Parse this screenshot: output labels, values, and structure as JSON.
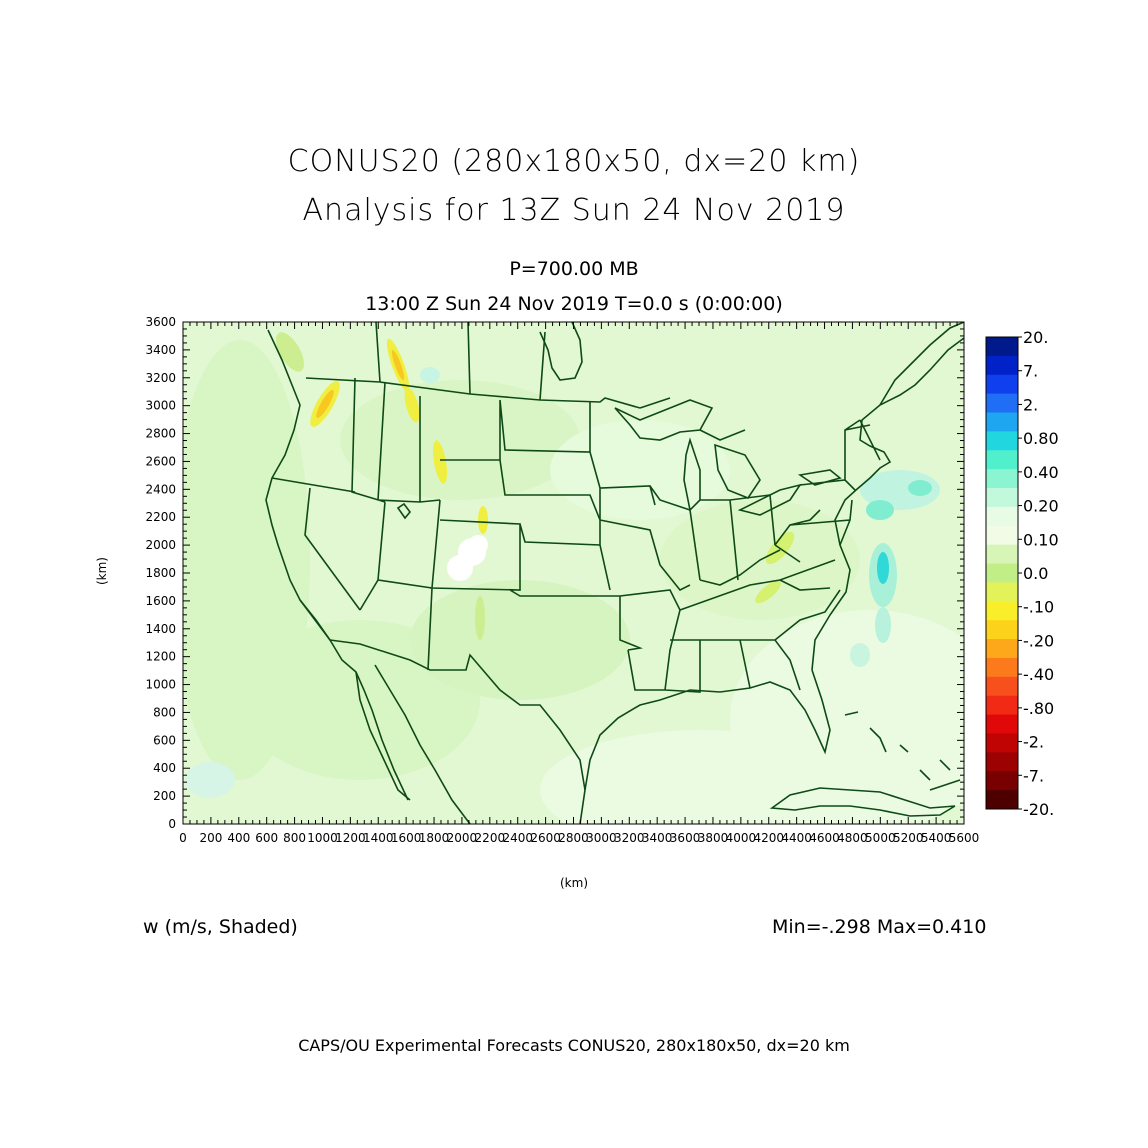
{
  "header": {
    "title_line1": "CONUS20 (280x180x50, dx=20 km)",
    "title_line2": "Analysis for 13Z Sun 24 Nov 2019",
    "level": "P=700.00 MB",
    "valid_time": "13:00 Z Sun 24 Nov 2019    T=0.0 s (0:00:00)"
  },
  "field": {
    "label": "w (m/s, Shaded)",
    "minmax": "Min=-.298 Max=0.410"
  },
  "footer": "CAPS/OU Experimental Forecasts  CONUS20, 280x180x50, dx=20 km",
  "axes": {
    "x_title": "(km)",
    "y_title": "(km)",
    "x_ticks": [
      "0",
      "200",
      "400",
      "600",
      "800",
      "1000",
      "1200",
      "1400",
      "1600",
      "1800",
      "2000",
      "2200",
      "2400",
      "2600",
      "2800",
      "3000",
      "3200",
      "3400",
      "3600",
      "3800",
      "4000",
      "4200",
      "4400",
      "4600",
      "4800",
      "5000",
      "5200",
      "5400",
      "5600"
    ],
    "y_ticks": [
      "0",
      "200",
      "400",
      "600",
      "800",
      "1000",
      "1200",
      "1400",
      "1600",
      "1800",
      "2000",
      "2200",
      "2400",
      "2600",
      "2800",
      "3000",
      "3200",
      "3400",
      "3600"
    ],
    "x_range": [
      0,
      5600
    ],
    "y_range": [
      0,
      3600
    ]
  },
  "colorbar": {
    "labels": [
      "20.",
      "7.",
      "2.",
      "0.80",
      "0.40",
      "0.20",
      "0.10",
      "0.0",
      "-.10",
      "-.20",
      "-.40",
      "-.80",
      "-2.",
      "-7.",
      "-20."
    ],
    "colors": [
      "#001a8c",
      "#0022c8",
      "#1040ee",
      "#1f6ef5",
      "#1ea6f0",
      "#22d6e0",
      "#50f0cc",
      "#8af5d0",
      "#c2f8dc",
      "#e8fbe4",
      "#f1fbe6",
      "#d8f5b8",
      "#c2ee88",
      "#e4f25a",
      "#f8ee2a",
      "#fcd21a",
      "#fca81a",
      "#fc7a1c",
      "#f8501c",
      "#f02a14",
      "#e00808",
      "#c00404",
      "#9c0202",
      "#780000",
      "#4e0000"
    ],
    "map_colors": {
      "background": "#e2f8d2",
      "boundary": "#0e4a16"
    }
  }
}
